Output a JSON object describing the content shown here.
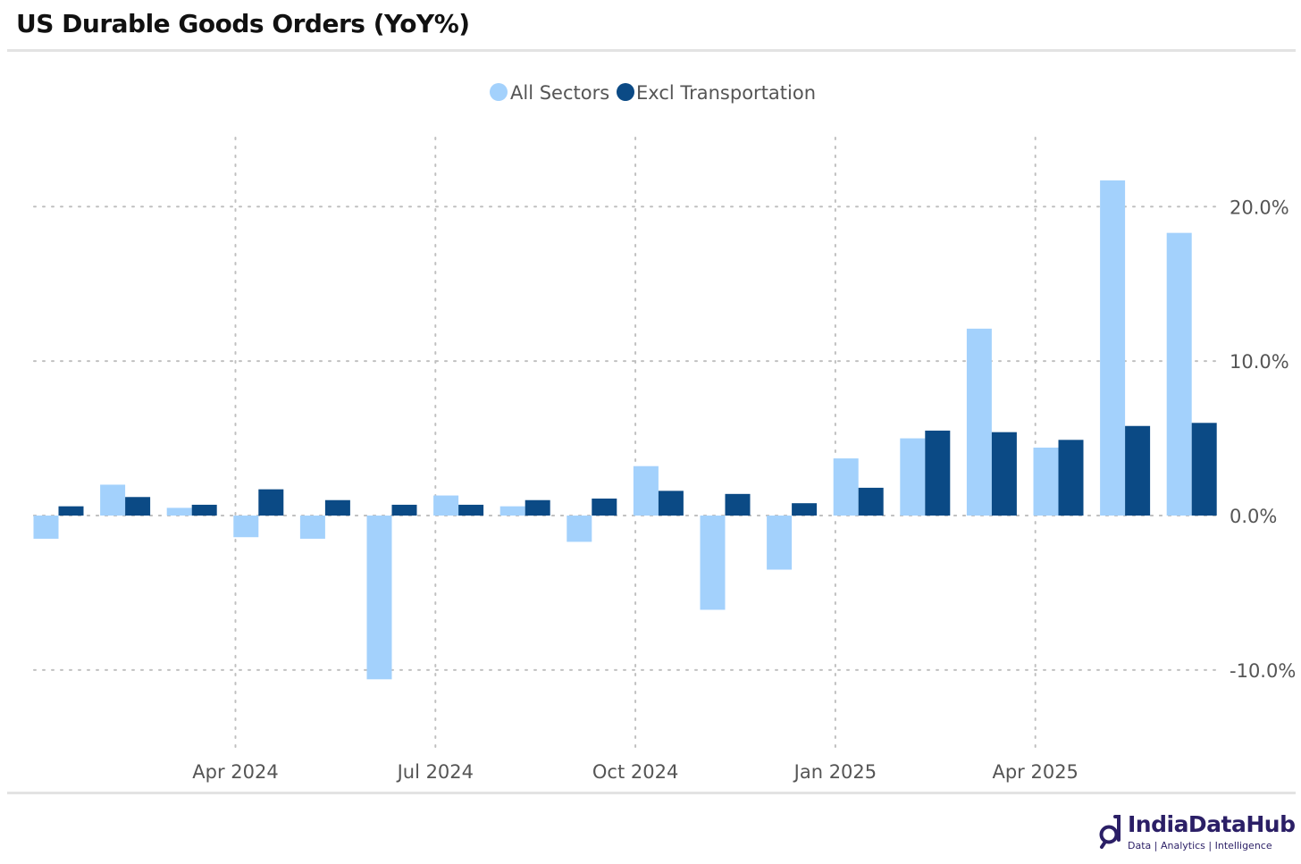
{
  "title": "US Durable Goods Orders (YoY%)",
  "colors": {
    "all_sectors": "#a3d1fc",
    "excl_transport": "#0b4a85",
    "grid": "#c0c0c0",
    "axis_text": "#555555",
    "logo": "#2b1f66"
  },
  "brand": {
    "name": "IndiaDataHub",
    "tagline": "Data | Analytics | Intelligence"
  },
  "chart_data": {
    "type": "bar",
    "title": "US Durable Goods Orders (YoY%)",
    "categories": [
      "2024-02",
      "2024-03",
      "2024-04",
      "2024-05",
      "2024-06",
      "2024-07",
      "2024-08",
      "2024-09",
      "2024-10",
      "2024-11",
      "2024-12",
      "2025-01",
      "2025-02",
      "2025-03",
      "2025-04",
      "2025-05",
      "2025-06",
      "2025-07"
    ],
    "series": [
      {
        "name": "All Sectors",
        "values": [
          -1.5,
          2.0,
          0.5,
          -1.4,
          -1.5,
          -10.6,
          1.3,
          0.6,
          -1.7,
          3.2,
          -6.1,
          -3.5,
          3.7,
          5.0,
          12.1,
          4.4,
          21.7,
          18.3
        ]
      },
      {
        "name": "Excl Transportation",
        "values": [
          0.6,
          1.2,
          0.7,
          1.7,
          1.0,
          0.7,
          0.7,
          1.0,
          1.1,
          1.6,
          1.4,
          0.8,
          1.8,
          5.5,
          5.4,
          4.9,
          5.8,
          6.0
        ]
      }
    ],
    "xticks": [
      "Apr 2024",
      "Jul 2024",
      "Oct 2024",
      "Jan 2025",
      "Apr 2025"
    ],
    "xtick_categories": [
      "2024-04",
      "2024-07",
      "2024-10",
      "2025-01",
      "2025-04"
    ],
    "yticks": [
      20,
      10,
      0,
      -10
    ],
    "ytick_labels": [
      "20.0%",
      "10.0%",
      "0.0%",
      "-10.0%"
    ],
    "ylim": [
      -15.5,
      24.7
    ],
    "xlabel": "",
    "ylabel": "",
    "legend_position": "top-center",
    "grid": true
  }
}
